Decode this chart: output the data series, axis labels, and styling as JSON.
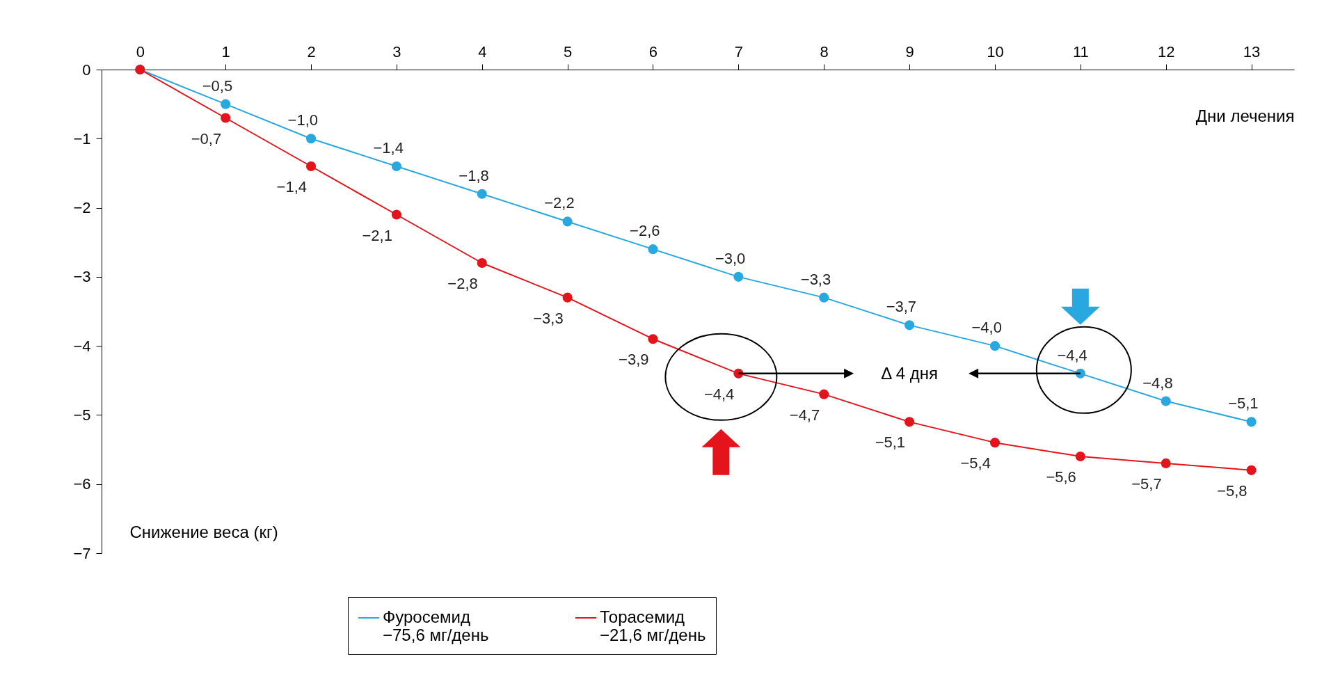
{
  "chart_data": {
    "type": "line",
    "xlabel": "Дни лечения",
    "ylabel": "Снижение веса (кг)",
    "x": [
      0,
      1,
      2,
      3,
      4,
      5,
      6,
      7,
      8,
      9,
      10,
      11,
      12,
      13
    ],
    "xlim": [
      -0.45,
      13.5
    ],
    "xticks": [
      0,
      1,
      2,
      3,
      4,
      5,
      6,
      7,
      8,
      9,
      10,
      11,
      12,
      13
    ],
    "ylim": [
      -7,
      0
    ],
    "yticks": [
      0,
      {
        "value": -1,
        "label": "−1"
      },
      {
        "value": -2,
        "label": "−2"
      },
      {
        "value": -3,
        "label": "−3"
      },
      {
        "value": -4,
        "label": "−4"
      },
      {
        "value": -5,
        "label": "−5"
      },
      {
        "value": -6,
        "label": "−6"
      },
      {
        "value": -7,
        "label": "−7"
      }
    ],
    "series": [
      {
        "name": "Фуросемид\n−75,6 мг/день",
        "color": "#29a8e0",
        "values": [
          0,
          -0.5,
          -1.0,
          -1.4,
          -1.8,
          -2.2,
          -2.6,
          -3.0,
          -3.3,
          -3.7,
          -4.0,
          -4.4,
          -4.8,
          -5.1
        ],
        "value_labels": [
          null,
          "−0,5",
          "−1,0",
          "−1,4",
          "−1,8",
          "−2,2",
          "−2,6",
          "−3,0",
          "−3,3",
          "−3,7",
          "−4,0",
          "−4,4",
          "−4,8",
          "−5,1"
        ]
      },
      {
        "name": "Торасемид\n−21,6 мг/день",
        "color": "#e3141b",
        "values": [
          0,
          -0.7,
          -1.4,
          -2.1,
          -2.8,
          -3.3,
          -3.9,
          -4.4,
          -4.7,
          -5.1,
          -5.4,
          -5.6,
          -5.7,
          -5.8
        ],
        "value_labels": [
          null,
          "−0,7",
          "−1,4",
          "−2,1",
          "−2,8",
          "−3,3",
          "−3,9",
          "−4,4",
          "−4,7",
          "−5,1",
          "−5,4",
          "−5,6",
          "−5,7",
          "−5,8"
        ]
      }
    ],
    "annotations": [
      "Δ 4 дня"
    ],
    "marker": "circle",
    "grid": false,
    "legend": "bottom"
  }
}
